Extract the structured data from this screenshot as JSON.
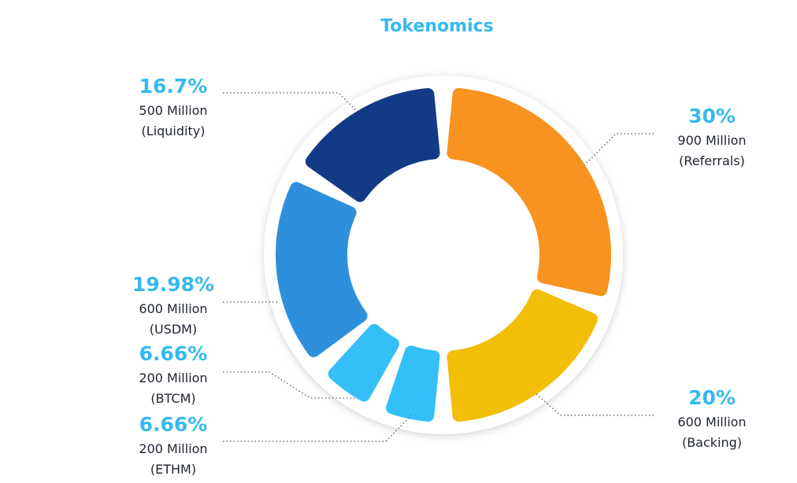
{
  "chart_data": {
    "type": "pie",
    "title": "Tokenomics",
    "slices": [
      {
        "percent": "30%",
        "value": 30,
        "amount": "900 Million",
        "category": "(Referrals)",
        "color": "#f7931e"
      },
      {
        "percent": "20%",
        "value": 20,
        "amount": "600 Million",
        "category": "(Backing)",
        "color": "#f2be07"
      },
      {
        "percent": "6.66%",
        "value": 6.66,
        "amount": "200 Million",
        "category": "(ETHM)",
        "color": "#35bff9"
      },
      {
        "percent": "6.66%",
        "value": 6.66,
        "amount": "200 Million",
        "category": "(BTCM)",
        "color": "#35bff9"
      },
      {
        "percent": "19.98%",
        "value": 19.98,
        "amount": "600 Million",
        "category": "(USDM)",
        "color": "#2e90dc"
      },
      {
        "percent": "16.7%",
        "value": 16.7,
        "amount": "500 Million",
        "category": "(Liquidity)",
        "color": "#133a86"
      }
    ]
  }
}
